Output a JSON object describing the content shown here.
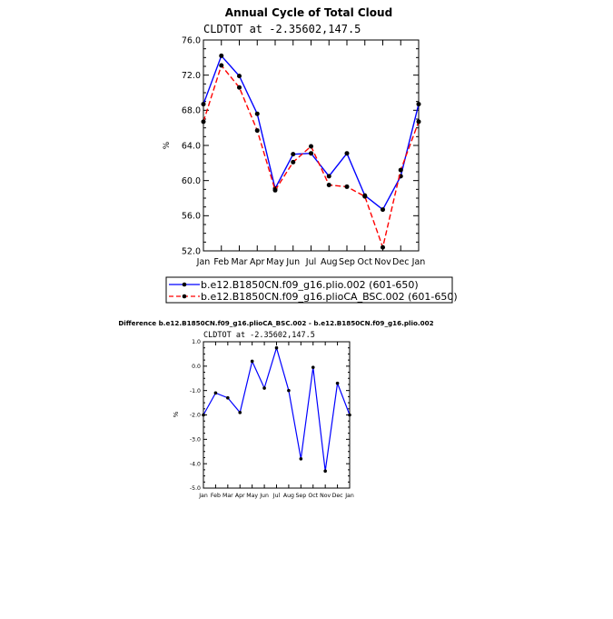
{
  "colors": {
    "series1": "#0000ff",
    "series2": "#ff0000",
    "axis": "#000000"
  },
  "chart_data": [
    {
      "type": "line",
      "title": "Annual Cycle of Total Cloud",
      "subtitle": "CLDTOT at -2.35602,147.5",
      "ylabel": "%",
      "ylim": [
        52,
        76
      ],
      "yticks": [
        "52.0",
        "56.0",
        "60.0",
        "64.0",
        "68.0",
        "72.0",
        "76.0"
      ],
      "categories": [
        "Jan",
        "Feb",
        "Mar",
        "Apr",
        "May",
        "Jun",
        "Jul",
        "Aug",
        "Sep",
        "Oct",
        "Nov",
        "Dec",
        "Jan"
      ],
      "legend": "bottom",
      "series": [
        {
          "name": "b.e12.B1850CN.f09_g16.plio.002 (601-650)",
          "color": "#0000ff",
          "dash": "solid",
          "values": [
            68.7,
            74.2,
            71.9,
            67.6,
            59.1,
            63.0,
            63.1,
            60.5,
            63.1,
            58.3,
            56.7,
            60.5,
            68.7
          ]
        },
        {
          "name": "b.e12.B1850CN.f09_g16.plioCA_BSC.002 (601-650)",
          "color": "#ff0000",
          "dash": "dashed",
          "values": [
            66.7,
            73.1,
            70.6,
            65.7,
            58.9,
            62.1,
            63.9,
            59.5,
            59.3,
            58.2,
            52.4,
            61.2,
            66.7
          ]
        }
      ]
    },
    {
      "type": "line",
      "title": "Difference b.e12.B1850CN.f09_g16.plioCA_BSC.002 - b.e12.B1850CN.f09_g16.plio.002",
      "subtitle": "CLDTOT at -2.35602,147.5",
      "ylabel": "%",
      "ylim": [
        -5,
        1
      ],
      "yticks": [
        "-5.0",
        "-4.0",
        "-3.0",
        "-2.0",
        "-1.0",
        "0.0",
        "1.0"
      ],
      "categories": [
        "Jan",
        "Feb",
        "Mar",
        "Apr",
        "May",
        "Jun",
        "Jul",
        "Aug",
        "Sep",
        "Oct",
        "Nov",
        "Dec",
        "Jan"
      ],
      "series": [
        {
          "color": "#0000ff",
          "dash": "solid",
          "values": [
            -2.0,
            -1.1,
            -1.3,
            -1.9,
            0.2,
            -0.9,
            0.75,
            -1.0,
            -3.8,
            -0.05,
            -4.3,
            -0.7,
            -2.0
          ]
        }
      ]
    }
  ]
}
